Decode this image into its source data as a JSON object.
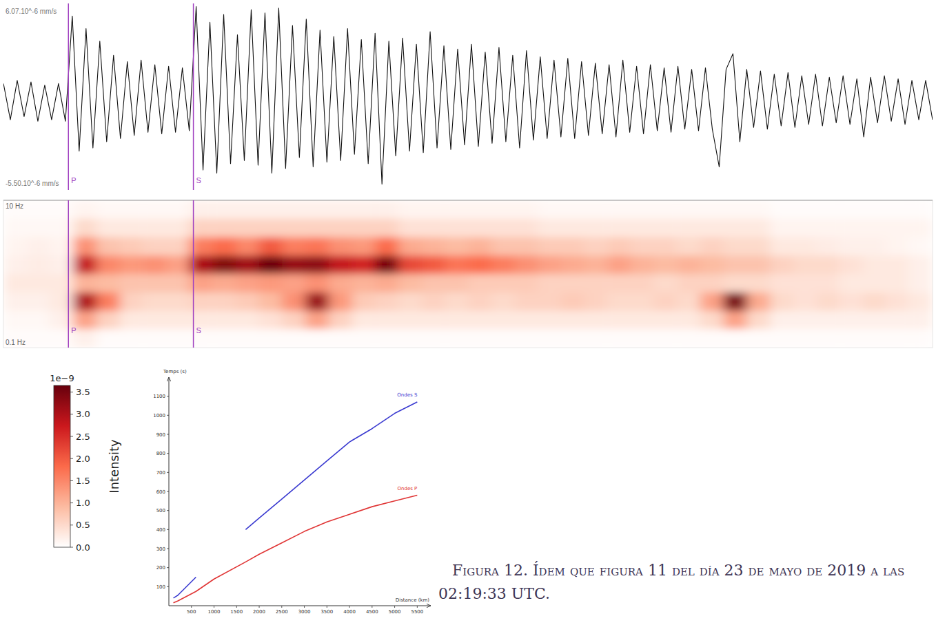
{
  "chart_data": [
    {
      "type": "line",
      "color": "#111111",
      "xlim": [
        0,
        135
      ],
      "ylim": [
        -5.5e-06,
        6.07e-06
      ],
      "yticks": [
        {
          "value": 6.07e-06,
          "label": "6.07.10^-6 mm/s"
        },
        {
          "value": -5.5e-06,
          "label": "-5.50.10^-6 mm/s"
        }
      ],
      "tick_labels": "y",
      "phases": [
        {
          "label": "P",
          "x": 9.44,
          "color": "#a040c0"
        },
        {
          "label": "S",
          "x": 27.6,
          "color": "#a040c0"
        }
      ],
      "values": [
        1.1e-06,
        -1.2e-06,
        1.3e-06,
        -1e-06,
        1.2e-06,
        -1.3e-06,
        1e-06,
        -1.2e-06,
        1.1e-06,
        -1.3e-06,
        5.4e-06,
        -3.2e-06,
        4.6e-06,
        -3e-06,
        3.8e-06,
        -2.6e-06,
        2.9e-06,
        -2.4e-06,
        2.5e-06,
        -2.2e-06,
        2.6e-06,
        -2e-06,
        2.3e-06,
        -2.1e-06,
        2.2e-06,
        -2e-06,
        2.1e-06,
        -1.9e-06,
        6e-06,
        -4.4e-06,
        5e-06,
        -4.6e-06,
        5.5e-06,
        -4e-06,
        4.2e-06,
        -3.8e-06,
        5.8e-06,
        -4.1e-06,
        5.6e-06,
        -4.6e-06,
        5.9e-06,
        -4.3e-06,
        4.8e-06,
        -3.6e-06,
        5.2e-06,
        -4.2e-06,
        4.5e-06,
        -3.9e-06,
        4.1e-06,
        -3.8e-06,
        4.6e-06,
        -3.4e-06,
        3.9e-06,
        -4e-06,
        4.3e-06,
        -5.3e-06,
        3.8e-06,
        -3.5e-06,
        4e-06,
        -3.2e-06,
        3.6e-06,
        -3.3e-06,
        4.4e-06,
        -3e-06,
        3.5e-06,
        -3.1e-06,
        3.3e-06,
        -2.8e-06,
        3.6e-06,
        -2.9e-06,
        3.1e-06,
        -2.7e-06,
        3.4e-06,
        -2.6e-06,
        2.9e-06,
        -3e-06,
        3.2e-06,
        -2.5e-06,
        2.8e-06,
        -2.4e-06,
        2.6e-06,
        -2.3e-06,
        2.7e-06,
        -2.4e-06,
        2.5e-06,
        -2.2e-06,
        2.4e-06,
        -2.1e-06,
        2.3e-06,
        -2.3e-06,
        2.6e-06,
        -2e-06,
        2.2e-06,
        -2.1e-06,
        2.3e-06,
        -1.9e-06,
        2.1e-06,
        -2e-06,
        2.2e-06,
        -1.8e-06,
        2e-06,
        -1.9e-06,
        2.1e-06,
        -1.8e-06,
        -4.2e-06,
        2e-06,
        3e-06,
        -2.6e-06,
        2e-06,
        -1.7e-06,
        1.9e-06,
        -1.8e-06,
        1.7e-06,
        -1.6e-06,
        1.8e-06,
        -1.7e-06,
        1.6e-06,
        -1.5e-06,
        1.7e-06,
        -1.6e-06,
        1.5e-06,
        -1.4e-06,
        1.6e-06,
        -1.5e-06,
        1.4e-06,
        -2.3e-06,
        1.5e-06,
        -1.4e-06,
        1.6e-06,
        -1.3e-06,
        1.4e-06,
        -1.5e-06,
        1.3e-06,
        -1.2e-06,
        1.3e-06,
        -1.2e-06
      ]
    },
    {
      "type": "heatmap",
      "log": "y",
      "xlim": [
        0,
        135
      ],
      "ylim": [
        0.1,
        10
      ],
      "yticks": [
        {
          "value": 10,
          "label": "10 Hz"
        },
        {
          "value": 0.1,
          "label": "0.1 Hz"
        }
      ],
      "tick_labels": "y",
      "phases": [
        {
          "label": "P",
          "x": 9.44,
          "color": "#a040c0"
        },
        {
          "label": "S",
          "x": 27.6,
          "color": "#a040c0"
        }
      ],
      "row_edges": [
        10,
        5.62,
        3.16,
        1.78,
        1,
        0.562,
        0.316,
        0.178,
        0.1
      ],
      "cells": [
        [
          0.05,
          0.05,
          0.05,
          0.15,
          0.1,
          0.1,
          0.1,
          0.1,
          0.2,
          0.2,
          0.2,
          0.2,
          0.2,
          0.2,
          0.2,
          0.2,
          0.2,
          0.15,
          0.15,
          0.15,
          0.15,
          0.15,
          0.15,
          0.1,
          0.1,
          0.1,
          0.1,
          0.1,
          0.1,
          0.1,
          0.1,
          0.1,
          0.1,
          0.05,
          0.05,
          0.05,
          0.05,
          0.05,
          0.05,
          0.05
        ],
        [
          0.1,
          0.1,
          0.1,
          0.5,
          0.3,
          0.3,
          0.3,
          0.3,
          0.6,
          0.6,
          0.6,
          0.6,
          0.6,
          0.6,
          0.6,
          0.6,
          0.6,
          0.4,
          0.4,
          0.4,
          0.4,
          0.4,
          0.4,
          0.3,
          0.3,
          0.3,
          0.3,
          0.3,
          0.3,
          0.3,
          0.3,
          0.3,
          0.3,
          0.15,
          0.15,
          0.15,
          0.15,
          0.15,
          0.15,
          0.15
        ],
        [
          0.15,
          0.2,
          0.15,
          1.4,
          0.8,
          0.7,
          0.6,
          0.6,
          1.6,
          1.8,
          1.5,
          2.0,
          1.6,
          1.7,
          1.4,
          1.3,
          1.8,
          1.1,
          1.0,
          0.9,
          1.0,
          0.8,
          0.8,
          0.7,
          0.7,
          0.6,
          0.7,
          0.6,
          0.6,
          0.5,
          0.6,
          0.5,
          0.5,
          0.3,
          0.3,
          0.25,
          0.2,
          0.2,
          0.15,
          0.1
        ],
        [
          0.2,
          0.25,
          0.2,
          2.8,
          1.5,
          1.3,
          1.4,
          1.2,
          3.0,
          3.4,
          3.1,
          3.6,
          3.2,
          3.3,
          2.8,
          2.6,
          3.5,
          2.2,
          2.0,
          1.7,
          1.8,
          1.6,
          1.4,
          1.2,
          1.1,
          1.0,
          1.2,
          1.0,
          0.9,
          1.0,
          0.9,
          0.8,
          0.8,
          0.6,
          0.5,
          0.5,
          0.4,
          0.3,
          0.3,
          0.2
        ],
        [
          0.3,
          0.3,
          0.3,
          1.0,
          0.9,
          0.8,
          0.8,
          0.8,
          1.2,
          1.1,
          1.2,
          1.3,
          1.2,
          1.4,
          1.1,
          1.0,
          1.1,
          0.9,
          0.8,
          0.8,
          0.7,
          0.7,
          0.7,
          0.6,
          0.6,
          0.6,
          0.6,
          0.6,
          0.5,
          0.6,
          0.6,
          0.5,
          0.5,
          0.4,
          0.4,
          0.4,
          0.3,
          0.3,
          0.3,
          0.2
        ],
        [
          0.2,
          0.2,
          0.3,
          3.0,
          1.6,
          0.6,
          0.5,
          0.5,
          0.6,
          0.6,
          0.7,
          0.9,
          1.4,
          3.2,
          1.3,
          0.7,
          0.6,
          0.5,
          0.6,
          0.5,
          0.6,
          0.5,
          0.6,
          0.6,
          0.7,
          0.6,
          0.5,
          0.5,
          0.6,
          0.5,
          1.2,
          3.5,
          1.1,
          0.5,
          0.4,
          0.5,
          0.4,
          0.5,
          0.4,
          0.3
        ],
        [
          0.1,
          0.1,
          0.2,
          1.2,
          0.6,
          0.3,
          0.3,
          0.3,
          0.3,
          0.3,
          0.3,
          0.4,
          0.6,
          1.2,
          0.6,
          0.3,
          0.3,
          0.3,
          0.3,
          0.3,
          0.3,
          0.3,
          0.3,
          0.3,
          0.3,
          0.3,
          0.3,
          0.3,
          0.3,
          0.3,
          0.5,
          1.2,
          0.5,
          0.2,
          0.2,
          0.2,
          0.2,
          0.2,
          0.2,
          0.2
        ],
        [
          0.05,
          0.05,
          0.05,
          0.2,
          0.05,
          0.05,
          0.05,
          0.05,
          0.05,
          0.05,
          0.05,
          0.05,
          0.05,
          0.05,
          0.05,
          0.05,
          0.05,
          0.05,
          0.05,
          0.05,
          0.05,
          0.05,
          0.05,
          0.05,
          0.05,
          0.05,
          0.05,
          0.05,
          0.05,
          0.05,
          0.05,
          0.05,
          0.05,
          0.05,
          0.05,
          0.05,
          0.05,
          0.05,
          0.05,
          0.05
        ]
      ],
      "colorbar": {
        "label": "Intensity",
        "scale_label": "1e−9",
        "range": [
          0,
          3.65
        ],
        "ticks": [
          {
            "value": 0,
            "label": "0.0"
          },
          0.5,
          {
            "value": 1,
            "label": "1.0"
          },
          1.5,
          {
            "value": 2,
            "label": "2.0"
          },
          2.5,
          {
            "value": 3,
            "label": "3.0"
          },
          3.5
        ]
      }
    },
    {
      "type": "line",
      "xlabel": "Distance (km)",
      "ylabel": "Temps (s)",
      "xlim": [
        0,
        5800
      ],
      "ylim": [
        0,
        1200
      ],
      "xticks": [
        500,
        1000,
        1500,
        2000,
        2500,
        3000,
        3500,
        4000,
        4500,
        5000,
        5500
      ],
      "yticks": [
        100,
        200,
        300,
        400,
        500,
        600,
        700,
        800,
        900,
        1000,
        1100
      ],
      "x": [
        100,
        200,
        600,
        1000,
        1700,
        2000,
        2500,
        3000,
        3500,
        4000,
        4500,
        5000,
        5500
      ],
      "series": [
        {
          "name": "Ondes S",
          "color": "#3a3ad0",
          "values": [
            40,
            55,
            150,
            null,
            400,
            460,
            560,
            660,
            760,
            860,
            930,
            1010,
            1070
          ]
        },
        {
          "name": "Ondes P",
          "color": "#e03535",
          "values": [
            15,
            25,
            75,
            140,
            230,
            270,
            330,
            390,
            440,
            480,
            520,
            550,
            580
          ]
        }
      ]
    }
  ],
  "caption": "Figura 12. Ídem que figura 11 del día 23 de mayo de 2019 a las 02:19:33 UTC."
}
